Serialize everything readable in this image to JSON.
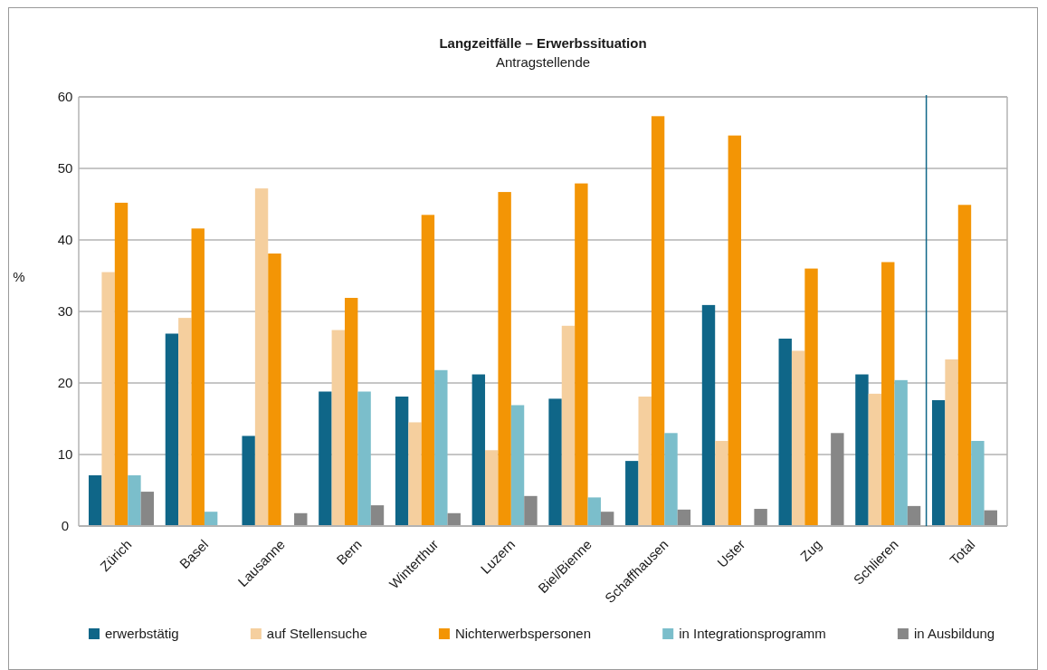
{
  "chart_data": {
    "type": "bar",
    "title": "Langzeitfälle – Erwerbssituation",
    "subtitle": "Antragstellende",
    "ylabel": "%",
    "categories": [
      "Zürich",
      "Basel",
      "Lausanne",
      "Bern",
      "Winterthur",
      "Luzern",
      "Biel/Bienne",
      "Schaffhausen",
      "Uster",
      "Zug",
      "Schlieren",
      "Total"
    ],
    "series": [
      {
        "name": "erwerbstätig",
        "color": "#0f6688",
        "values": [
          7.1,
          26.9,
          12.6,
          18.8,
          18.1,
          21.2,
          17.8,
          9.1,
          30.9,
          26.2,
          21.2,
          17.6
        ]
      },
      {
        "name": "auf Stellensuche",
        "color": "#f5cf9e",
        "values": [
          35.5,
          29.1,
          47.2,
          27.4,
          14.5,
          10.6,
          28.0,
          18.1,
          11.9,
          24.5,
          18.5,
          23.3
        ]
      },
      {
        "name": "Nichterwerbspersonen",
        "color": "#f39505",
        "values": [
          45.2,
          41.6,
          38.1,
          31.9,
          43.5,
          46.7,
          47.9,
          57.3,
          54.6,
          36.0,
          36.9,
          44.9
        ]
      },
      {
        "name": "in Integrationsprogramm",
        "color": "#7bbecb",
        "values": [
          7.1,
          2.0,
          null,
          18.8,
          21.8,
          16.9,
          4.0,
          13.0,
          null,
          null,
          20.4,
          11.9
        ]
      },
      {
        "name": "in Ausbildung",
        "color": "#878787",
        "values": [
          4.8,
          null,
          1.8,
          2.9,
          1.8,
          4.2,
          2.0,
          2.3,
          2.4,
          13.0,
          2.8,
          2.2
        ]
      }
    ],
    "ylim": [
      0,
      60
    ],
    "yticks": [
      0,
      10,
      20,
      30,
      40,
      50,
      60
    ],
    "grid": "y",
    "legend": "bottom",
    "ref_lines": [
      {
        "axis": "x",
        "value": "Total",
        "color": "#0f6688"
      }
    ]
  }
}
